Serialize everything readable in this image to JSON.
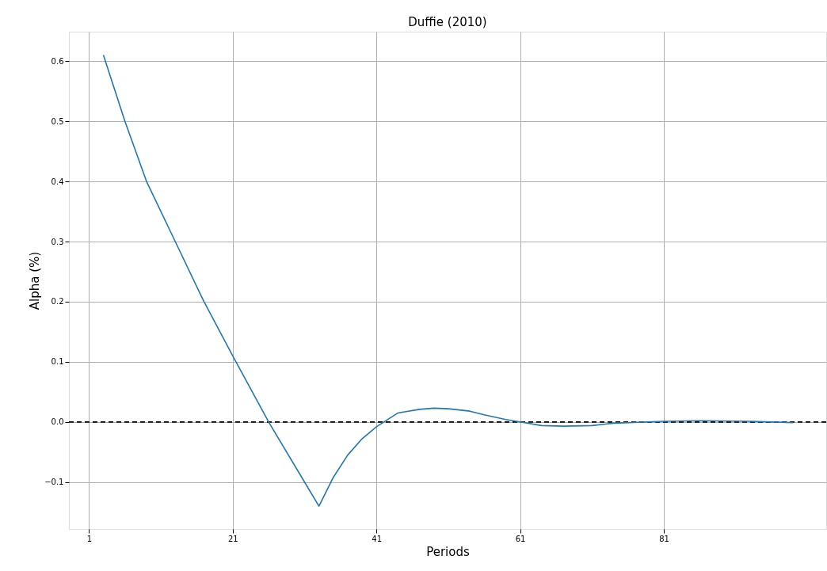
{
  "chart_data": {
    "type": "line",
    "title": "Duffie (2010)",
    "xlabel": "Periods",
    "ylabel": "Alpha (%)",
    "xlim": [
      -1.8,
      103.6
    ],
    "xticks": [
      1,
      21,
      41,
      61,
      81
    ],
    "ylim": [
      -0.178,
      0.649
    ],
    "yticks": [
      -0.1,
      {
        "value": 0,
        "label": "0.0"
      },
      0.1,
      0.2,
      0.3,
      0.4,
      0.5,
      0.6
    ],
    "grid": true,
    "line_style": "solid",
    "ref_lines": [
      {
        "axis": "y",
        "value": 0,
        "color": "#000000",
        "line_style": "dashed"
      }
    ],
    "series": [
      {
        "color": "#1f77b4",
        "x": [
          3,
          6,
          9,
          13,
          17,
          21,
          26,
          31,
          33,
          35,
          37,
          39,
          41,
          44,
          47,
          49,
          51,
          54,
          56,
          59,
          61,
          64,
          67,
          71,
          74,
          81,
          86,
          93,
          99
        ],
        "values": [
          0.61,
          0.5,
          0.4,
          0.3,
          0.2,
          0.11,
          0.0,
          -0.1,
          -0.14,
          -0.092,
          -0.055,
          -0.028,
          -0.008,
          0.015,
          0.021,
          0.023,
          0.022,
          0.018,
          0.012,
          0.004,
          0.0,
          -0.006,
          -0.007,
          -0.006,
          -0.002,
          0.001,
          0.002,
          0.001,
          -0.001
        ]
      }
    ]
  }
}
